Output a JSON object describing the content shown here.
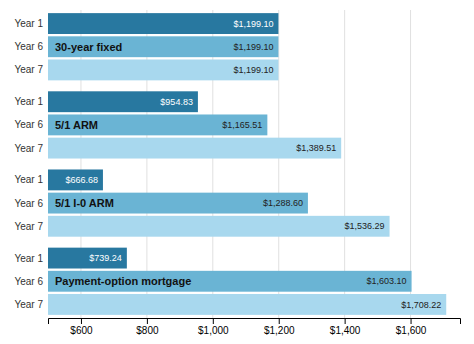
{
  "chart_data": {
    "type": "bar",
    "orientation": "horizontal",
    "categories": [
      "30-year fixed",
      "5/1 ARM",
      "5/1 I-0 ARM",
      "Payment-option mortgage"
    ],
    "series": [
      {
        "name": "Year 1",
        "color": "#2878a0",
        "values": [
          1199.1,
          954.83,
          666.68,
          739.24
        ],
        "value_labels": [
          "$1,199.10",
          "$954.83",
          "$666.68",
          "$739.24"
        ]
      },
      {
        "name": "Year 6",
        "color": "#6ab4d4",
        "values": [
          1199.1,
          1165.51,
          1288.6,
          1603.1
        ],
        "value_labels": [
          "$1,199.10",
          "$1,165.51",
          "$1,288.60",
          "$1,603.10"
        ]
      },
      {
        "name": "Year 7",
        "color": "#a8d8ee",
        "values": [
          1199.1,
          1389.51,
          1536.29,
          1708.22
        ],
        "value_labels": [
          "$1,199.10",
          "$1,389.51",
          "$1,536.29",
          "$1,708.22"
        ]
      }
    ],
    "xlim": [
      500,
      1750
    ],
    "xticks": [
      {
        "value": 600,
        "label": "$600"
      },
      {
        "value": 800,
        "label": "$800"
      },
      {
        "value": 1000,
        "label": "$1,000"
      },
      {
        "value": 1200,
        "label": "$1,200"
      },
      {
        "value": 1400,
        "label": "$1,400"
      },
      {
        "value": 1600,
        "label": "$1,600"
      }
    ],
    "grid": true,
    "data_labels": true
  }
}
